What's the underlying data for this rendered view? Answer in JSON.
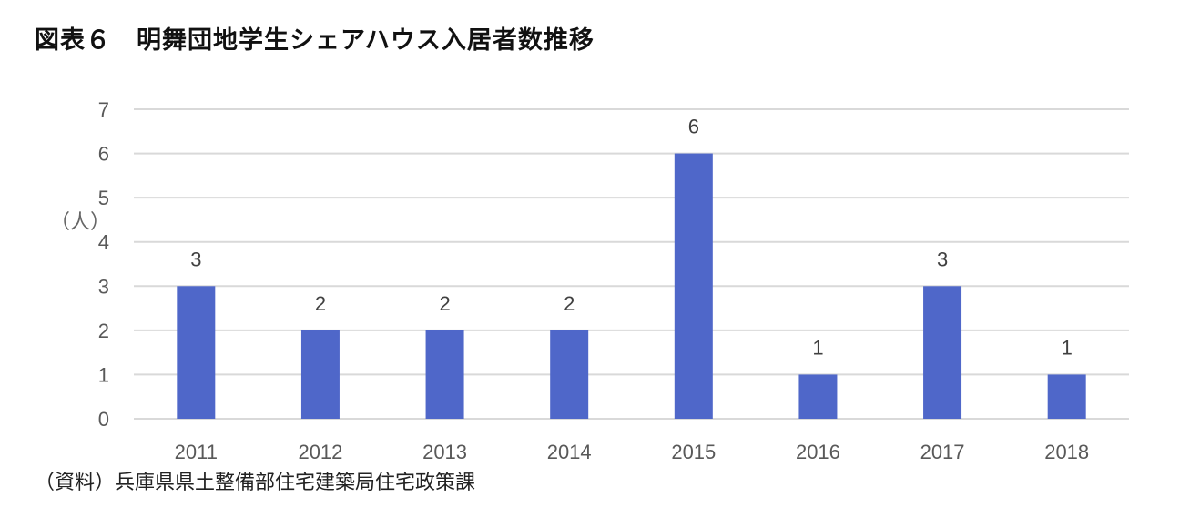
{
  "title": "図表６　明舞団地学生シェアハウス入居者数推移",
  "source": "（資料）兵庫県県土整備部住宅建築局住宅政策課",
  "colors": {
    "bar": "#4f67c9",
    "grid": "#d9d9d9",
    "tick_text": "#595959",
    "label_text": "#404040"
  },
  "chart_data": {
    "type": "bar",
    "title": "図表６　明舞団地学生シェアハウス入居者数推移",
    "ylabel": "（人）",
    "xlabel": "",
    "categories": [
      "2011",
      "2012",
      "2013",
      "2014",
      "2015",
      "2016",
      "2017",
      "2018"
    ],
    "values": [
      3,
      2,
      2,
      2,
      6,
      1,
      3,
      1
    ],
    "ylim": [
      0,
      7
    ],
    "yticks": [
      0,
      1,
      2,
      3,
      4,
      5,
      6,
      7
    ],
    "grid": true,
    "data_labels": true,
    "legend": "none"
  }
}
